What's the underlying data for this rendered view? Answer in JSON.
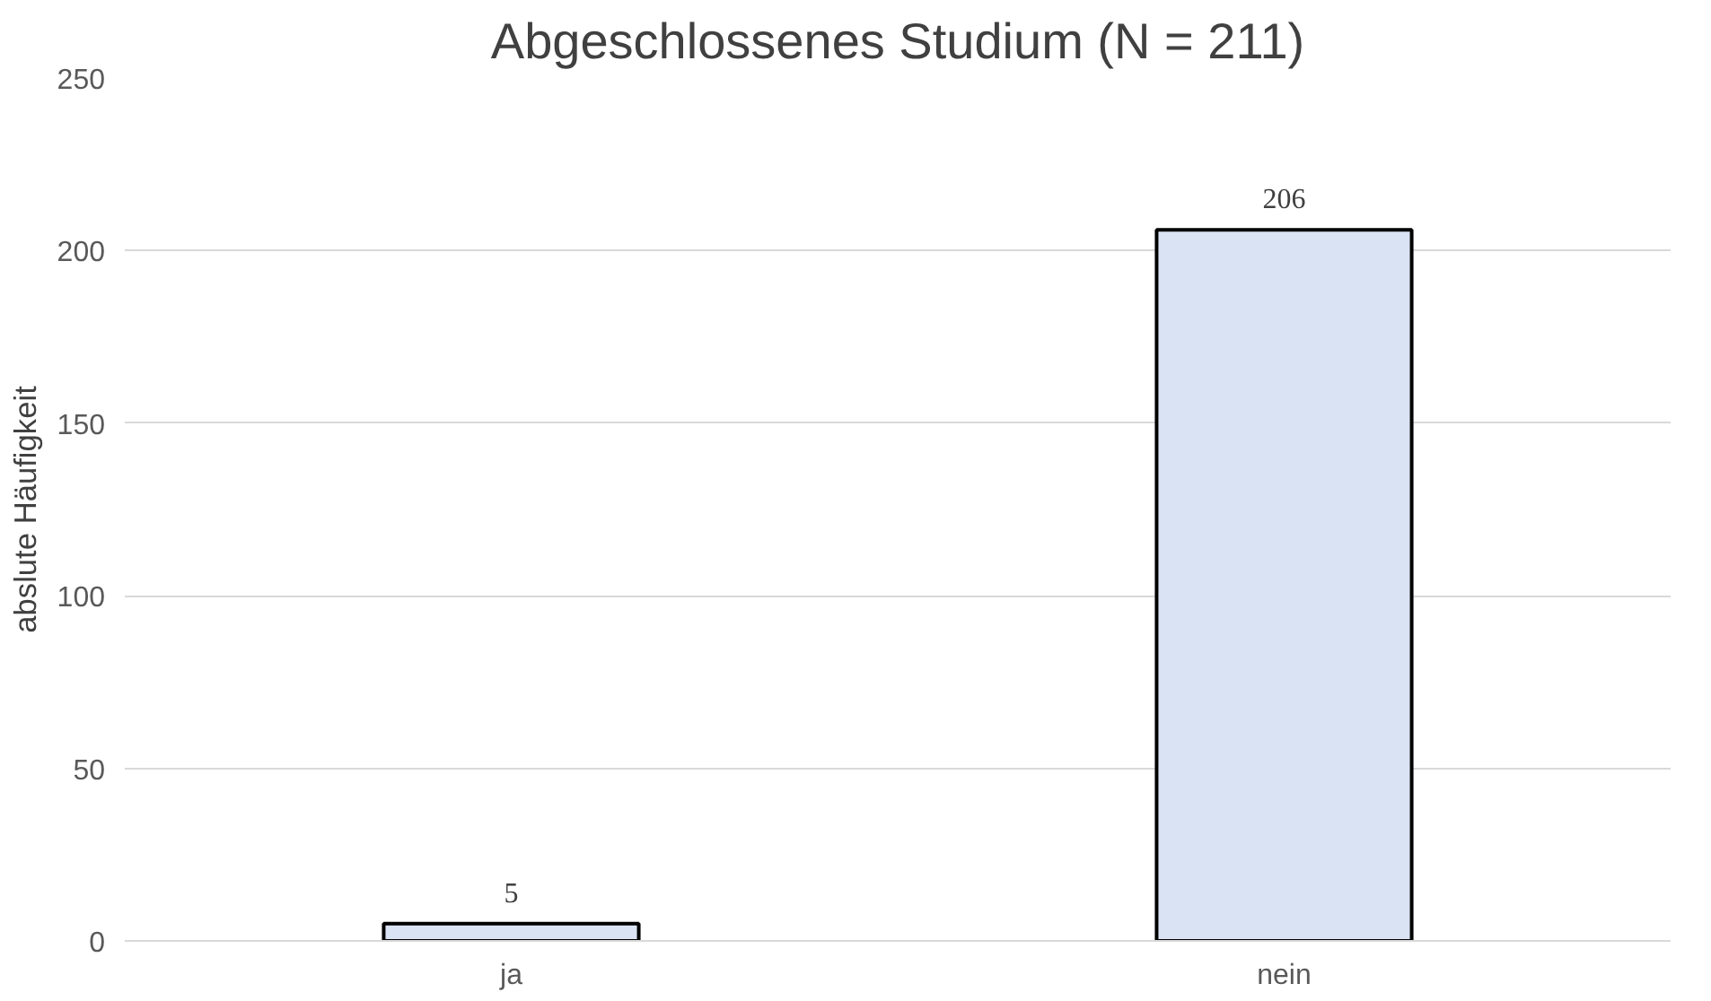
{
  "chart_data": {
    "type": "bar",
    "title": "Abgeschlossenes Studium (N = 211)",
    "ylabel": "abslute Häufigkeit",
    "categories": [
      "ja",
      "nein"
    ],
    "values": [
      5,
      206
    ],
    "color": "#dae3f3",
    "ylim": [
      0,
      250
    ],
    "yticks": [
      0,
      50,
      100,
      150,
      200,
      250
    ],
    "grid": "y",
    "data_labels": true
  }
}
